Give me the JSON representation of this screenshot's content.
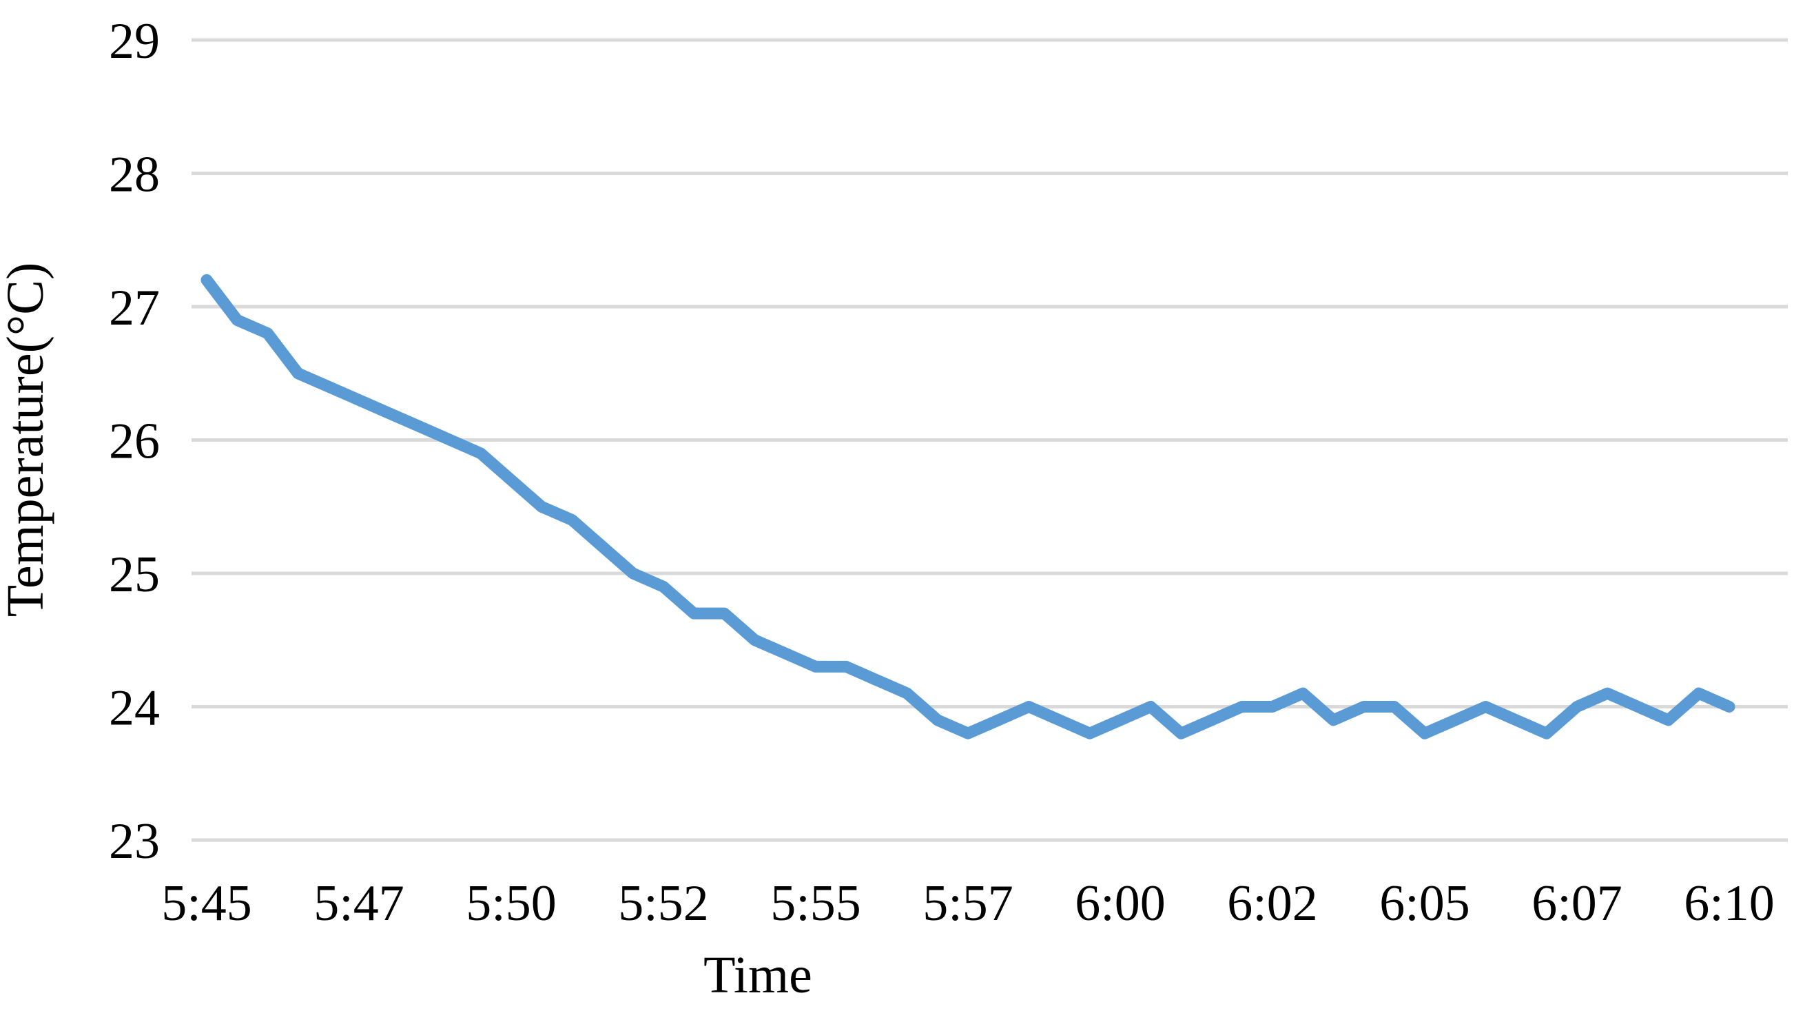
{
  "chart": {
    "y_axis_title": "Temperature(°C)",
    "x_axis_title": "Time",
    "y_ticks": [
      29,
      28,
      27,
      26,
      25,
      24,
      23
    ],
    "x_tick_labels": [
      "5:45",
      "5:47",
      "5:50",
      "5:52",
      "5:55",
      "5:57",
      "6:00",
      "6:02",
      "6:05",
      "6:07",
      "6:10"
    ],
    "line_color": "#5b9bd5",
    "gridline_color": "#d9d9d9",
    "text_color": "#000000",
    "background": "#ffffff"
  },
  "chart_data": {
    "type": "line",
    "title": "",
    "xlabel": "Time",
    "ylabel": "Temperature(°C)",
    "ylim": [
      23,
      29
    ],
    "grid": true,
    "legend": false,
    "sample_interval_seconds": 30,
    "x_tick_labels": [
      "5:45",
      "5:47",
      "5:50",
      "5:52",
      "5:55",
      "5:57",
      "6:00",
      "6:02",
      "6:05",
      "6:07",
      "6:10"
    ],
    "x": [
      "5:45:00",
      "5:45:30",
      "5:46:00",
      "5:46:30",
      "5:47:00",
      "5:47:30",
      "5:48:00",
      "5:48:30",
      "5:49:00",
      "5:49:30",
      "5:50:00",
      "5:50:30",
      "5:51:00",
      "5:51:30",
      "5:52:00",
      "5:52:30",
      "5:53:00",
      "5:53:30",
      "5:54:00",
      "5:54:30",
      "5:55:00",
      "5:55:30",
      "5:56:00",
      "5:56:30",
      "5:57:00",
      "5:57:30",
      "5:58:00",
      "5:58:30",
      "5:59:00",
      "5:59:30",
      "6:00:00",
      "6:00:30",
      "6:01:00",
      "6:01:30",
      "6:02:00",
      "6:02:30",
      "6:03:00",
      "6:03:30",
      "6:04:00",
      "6:04:30",
      "6:05:00",
      "6:05:30",
      "6:06:00",
      "6:06:30",
      "6:07:00",
      "6:07:30",
      "6:08:00",
      "6:08:30",
      "6:09:00",
      "6:09:30",
      "6:10:00"
    ],
    "series": [
      {
        "name": "Temperature",
        "values": [
          27.2,
          26.9,
          26.8,
          26.5,
          26.4,
          26.3,
          26.2,
          26.1,
          26.0,
          25.9,
          25.7,
          25.5,
          25.4,
          25.2,
          25.0,
          24.9,
          24.7,
          24.7,
          24.5,
          24.4,
          24.3,
          24.3,
          24.2,
          24.1,
          23.9,
          23.8,
          23.9,
          24.0,
          23.9,
          23.8,
          23.9,
          24.0,
          23.8,
          23.9,
          24.0,
          24.0,
          24.1,
          23.9,
          24.0,
          24.0,
          23.8,
          23.9,
          24.0,
          23.9,
          23.8,
          24.0,
          24.1,
          24.0,
          23.9,
          24.1,
          24.0
        ]
      }
    ]
  }
}
